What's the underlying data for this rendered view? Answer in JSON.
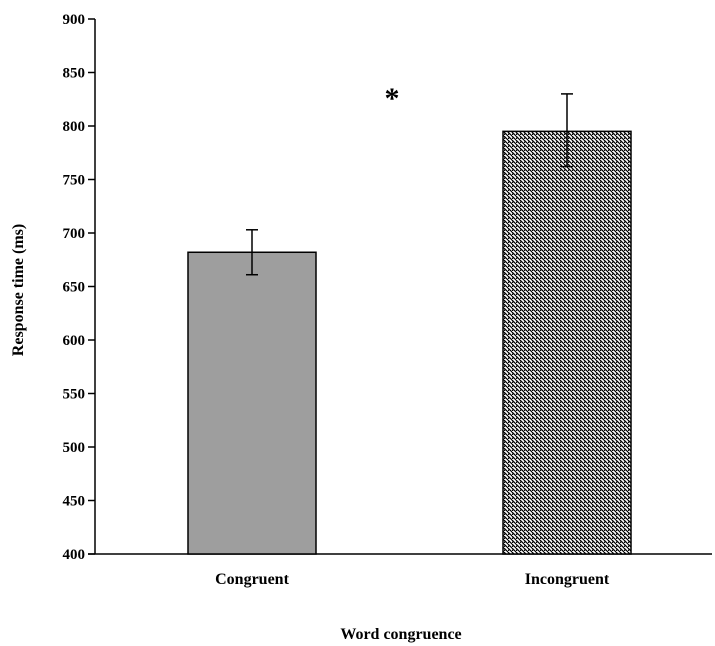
{
  "chart_data": {
    "type": "bar",
    "categories": [
      "Congruent",
      "Incongruent"
    ],
    "values": [
      682,
      795
    ],
    "error_bars": [
      {
        "lower": 661,
        "upper": 703
      },
      {
        "lower": 762,
        "upper": 830
      }
    ],
    "xlabel": "Word congruence",
    "ylabel": "Response time (ms)",
    "ylim": [
      400,
      900
    ],
    "yticks": [
      400,
      450,
      500,
      550,
      600,
      650,
      700,
      750,
      800,
      850,
      900
    ],
    "annotation": "*",
    "bar_fills": [
      "solid-gray",
      "diagonal-hatch"
    ],
    "colors": {
      "solid_bar": "#9e9e9e",
      "hatch_bar": "#000000",
      "axis": "#000000"
    },
    "grid": false,
    "legend": "none"
  }
}
